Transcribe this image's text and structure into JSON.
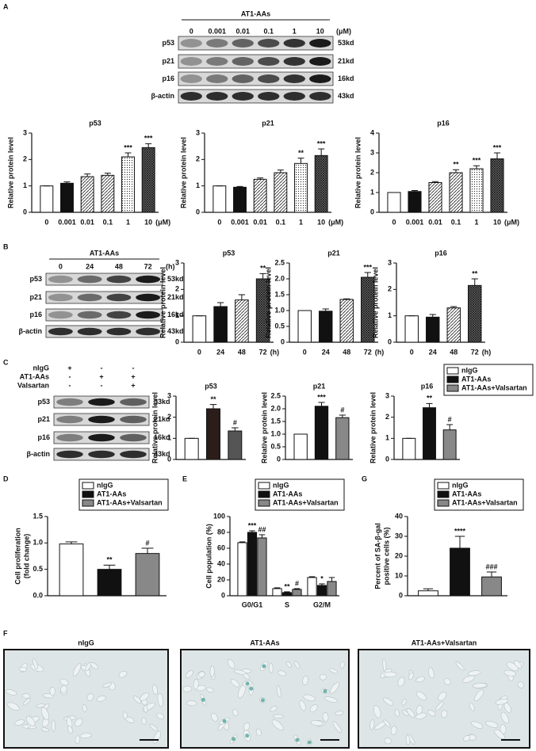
{
  "panel_labels": [
    "A",
    "B",
    "C",
    "D",
    "E",
    "F",
    "G"
  ],
  "blot_A": {
    "header": "AT1-AAs",
    "lanes": [
      "0",
      "0.001",
      "0.01",
      "0.1",
      "1",
      "10"
    ],
    "unit": "(μM)",
    "proteins": [
      "p53",
      "p21",
      "p16",
      "β-actin"
    ],
    "sizes": [
      "53kd",
      "21kd",
      "16kd",
      "43kd"
    ]
  },
  "blot_B": {
    "header": "AT1-AAs",
    "lanes": [
      "0",
      "24",
      "48",
      "72"
    ],
    "unit": "(h)",
    "proteins": [
      "p53",
      "p21",
      "p16",
      "β-actin"
    ],
    "sizes": [
      "53kd",
      "21kd",
      "16kd",
      "43kd"
    ]
  },
  "blot_C": {
    "treatments": [
      {
        "name": "nIgG",
        "signs": [
          "+",
          "-",
          "-"
        ]
      },
      {
        "name": "AT1-AAs",
        "signs": [
          "-",
          "+",
          "+"
        ]
      },
      {
        "name": "Valsartan",
        "signs": [
          "-",
          "-",
          "+"
        ]
      }
    ],
    "proteins": [
      "p53",
      "p21",
      "p16",
      "β-actin"
    ],
    "sizes": [
      "53kd",
      "21kd",
      "16kd",
      "43kd"
    ]
  },
  "legends": [
    {
      "names": [
        "nIgG",
        "AT1-AAs",
        "AT1-AAs+Valsartan"
      ],
      "colors": [
        "#ffffff",
        "#111111",
        "#888888"
      ]
    },
    {
      "names": [
        "nIgG",
        "AT1-AAs",
        "AT1-AAs+Valsartan"
      ],
      "colors": [
        "#ffffff",
        "#111111",
        "#888888"
      ]
    },
    {
      "names": [
        "nIgG",
        "AT1-AAs",
        "AT1-AAs+Valsartan"
      ],
      "colors": [
        "#ffffff",
        "#111111",
        "#888888"
      ]
    }
  ],
  "chart_data": [
    {
      "type": "bar",
      "title": "p53",
      "ylabel": "Relative protein level",
      "categories": [
        "0",
        "0.001",
        "0.01",
        "0.1",
        "1",
        "10"
      ],
      "x_unit": "(μM)",
      "values": [
        1.0,
        1.1,
        1.35,
        1.4,
        2.1,
        2.45
      ],
      "errors": [
        0,
        0.05,
        0.1,
        0.08,
        0.15,
        0.15
      ],
      "annotations": [
        null,
        null,
        null,
        null,
        "***",
        "***"
      ],
      "fills": [
        "#ffffff",
        "#111111",
        "hatch",
        "hatch",
        "dots",
        "cross"
      ],
      "ylim": [
        0,
        3
      ],
      "yticks": [
        0,
        1,
        2,
        3
      ]
    },
    {
      "type": "bar",
      "title": "p21",
      "ylabel": "Relative protein level",
      "categories": [
        "0",
        "0.001",
        "0.01",
        "0.1",
        "1",
        "10"
      ],
      "x_unit": "(μM)",
      "values": [
        1.0,
        0.95,
        1.25,
        1.5,
        1.85,
        2.15
      ],
      "errors": [
        0,
        0.03,
        0.05,
        0.1,
        0.2,
        0.25
      ],
      "annotations": [
        null,
        null,
        null,
        null,
        "**",
        "***"
      ],
      "fills": [
        "#ffffff",
        "#111111",
        "hatch",
        "hatch",
        "dots",
        "cross"
      ],
      "ylim": [
        0,
        3
      ],
      "yticks": [
        0,
        1,
        2,
        3
      ]
    },
    {
      "type": "bar",
      "title": "p16",
      "ylabel": "Relative protein level",
      "categories": [
        "0",
        "0.001",
        "0.01",
        "0.1",
        "1",
        "10"
      ],
      "x_unit": "(μM)",
      "values": [
        1.0,
        1.05,
        1.5,
        2.0,
        2.2,
        2.7
      ],
      "errors": [
        0,
        0.05,
        0.05,
        0.15,
        0.15,
        0.3
      ],
      "annotations": [
        null,
        null,
        null,
        "**",
        "***",
        "***"
      ],
      "fills": [
        "#ffffff",
        "#111111",
        "hatch",
        "hatch",
        "dots",
        "cross"
      ],
      "ylim": [
        0,
        4
      ],
      "yticks": [
        0,
        1,
        2,
        3,
        4
      ]
    },
    {
      "type": "bar",
      "title": "p53",
      "ylabel": "Relative protein level",
      "categories": [
        "0",
        "24",
        "48",
        "72"
      ],
      "x_unit": "(h)",
      "values": [
        1.0,
        1.35,
        1.6,
        2.4
      ],
      "errors": [
        0,
        0.15,
        0.2,
        0.2
      ],
      "annotations": [
        null,
        null,
        null,
        "**"
      ],
      "fills": [
        "#ffffff",
        "#111111",
        "hatch",
        "cross"
      ],
      "ylim": [
        0,
        3
      ],
      "yticks": [
        0,
        1,
        2,
        3
      ]
    },
    {
      "type": "bar",
      "title": "p21",
      "ylabel": "Relative protein level",
      "categories": [
        "0",
        "24",
        "48",
        "72"
      ],
      "x_unit": "(h)",
      "values": [
        1.0,
        0.98,
        1.35,
        2.05
      ],
      "errors": [
        0,
        0.07,
        0.02,
        0.15
      ],
      "annotations": [
        null,
        null,
        null,
        "***"
      ],
      "fills": [
        "#ffffff",
        "#111111",
        "hatch",
        "cross"
      ],
      "ylim": [
        0,
        2.5
      ],
      "yticks": [
        0,
        0.5,
        {
          "value": 1,
          "label": "1.0"
        },
        1.5,
        {
          "value": 2,
          "label": "2.0"
        },
        2.5
      ]
    },
    {
      "type": "bar",
      "title": "p16",
      "ylabel": "Relative protein level",
      "categories": [
        "0",
        "24",
        "48",
        "72"
      ],
      "x_unit": "(h)",
      "values": [
        1.0,
        0.95,
        1.3,
        2.15
      ],
      "errors": [
        0,
        0.1,
        0.05,
        0.25
      ],
      "annotations": [
        null,
        null,
        null,
        "**"
      ],
      "fills": [
        "#ffffff",
        "#111111",
        "hatch",
        "cross"
      ],
      "ylim": [
        0,
        3
      ],
      "yticks": [
        0,
        1,
        2,
        3
      ]
    },
    {
      "type": "bar",
      "title": "p53",
      "ylabel": "Relative protein level",
      "categories": [
        null,
        null,
        null
      ],
      "values": [
        1.0,
        2.4,
        1.35
      ],
      "errors": [
        0,
        0.2,
        0.15
      ],
      "annotations": [
        null,
        "**",
        "#"
      ],
      "fills": [
        "#ffffff",
        "#2b1d1a",
        "#555555"
      ],
      "ylim": [
        0,
        3
      ],
      "yticks": [
        0,
        1,
        2,
        3
      ]
    },
    {
      "type": "bar",
      "title": "p21",
      "ylabel": "Relative protein level",
      "categories": [
        null,
        null,
        null
      ],
      "values": [
        1.0,
        2.1,
        1.65
      ],
      "errors": [
        0,
        0.15,
        0.1
      ],
      "annotations": [
        null,
        "***",
        "#"
      ],
      "fills": [
        "#ffffff",
        "#111111",
        "#888888"
      ],
      "ylim": [
        0,
        2.5
      ],
      "yticks": [
        0,
        0.5,
        {
          "value": 1,
          "label": "1.0"
        },
        1.5,
        {
          "value": 2,
          "label": "2.0"
        },
        2.5
      ]
    },
    {
      "type": "bar",
      "title": "p16",
      "ylabel": "Relative protein level",
      "categories": [
        null,
        null,
        null
      ],
      "values": [
        1.0,
        2.45,
        1.4
      ],
      "errors": [
        0,
        0.2,
        0.25
      ],
      "annotations": [
        null,
        "**",
        "#"
      ],
      "fills": [
        "#ffffff",
        "#111111",
        "#888888"
      ],
      "ylim": [
        0,
        3
      ],
      "yticks": [
        0,
        1,
        2,
        3
      ]
    },
    {
      "type": "bar",
      "ylabel": [
        "Cell proliferation",
        "(fold change)"
      ],
      "categories": [
        null,
        null,
        null
      ],
      "values": [
        0.98,
        0.5,
        0.8
      ],
      "errors": [
        0.04,
        0.08,
        0.1
      ],
      "annotations": [
        null,
        "**",
        "#"
      ],
      "fills": [
        "#ffffff",
        "#111111",
        "#888888"
      ],
      "ylim": [
        0,
        1.5
      ],
      "yticks": [
        {
          "value": 0,
          "label": "0.0"
        },
        0.5,
        {
          "value": 1,
          "label": "1.0"
        },
        1.5
      ]
    },
    {
      "type": "grouped_bar",
      "ylabel": "Cell population (%)",
      "categories": [
        "G0/G1",
        "S",
        "G2/M"
      ],
      "series": [
        {
          "name": "nIgG",
          "color": "#ffffff",
          "values": [
            67,
            9,
            23
          ],
          "errors": [
            1,
            1,
            1
          ],
          "annotations": [
            null,
            null,
            null
          ]
        },
        {
          "name": "AT1-AAs",
          "color": "#111111",
          "values": [
            80,
            4,
            13
          ],
          "errors": [
            2,
            1,
            2
          ],
          "annotations": [
            "***",
            "**",
            "*"
          ]
        },
        {
          "name": "AT1-AAs+Valsartan",
          "color": "#888888",
          "values": [
            73,
            8,
            18
          ],
          "errors": [
            4,
            1,
            5
          ],
          "annotations": [
            "##",
            "#",
            null
          ]
        }
      ],
      "ylim": [
        0,
        100
      ],
      "yticks": [
        0,
        20,
        40,
        60,
        80,
        100
      ]
    },
    {
      "type": "bar",
      "ylabel": [
        "Percent of SA-β-gal",
        "positive cells (%)"
      ],
      "categories": [
        null,
        null,
        null
      ],
      "values": [
        2.5,
        24,
        9.5
      ],
      "errors": [
        1,
        6,
        2.5
      ],
      "annotations": [
        null,
        "****",
        "###"
      ],
      "fills": [
        "#ffffff",
        "#111111",
        "#888888"
      ],
      "ylim": [
        0,
        40
      ],
      "yticks": [
        0,
        10,
        20,
        30,
        40
      ]
    }
  ],
  "images": {
    "titles": [
      "nIgG",
      "AT1-AAs",
      "AT1-AAs+Valsartan"
    ]
  }
}
